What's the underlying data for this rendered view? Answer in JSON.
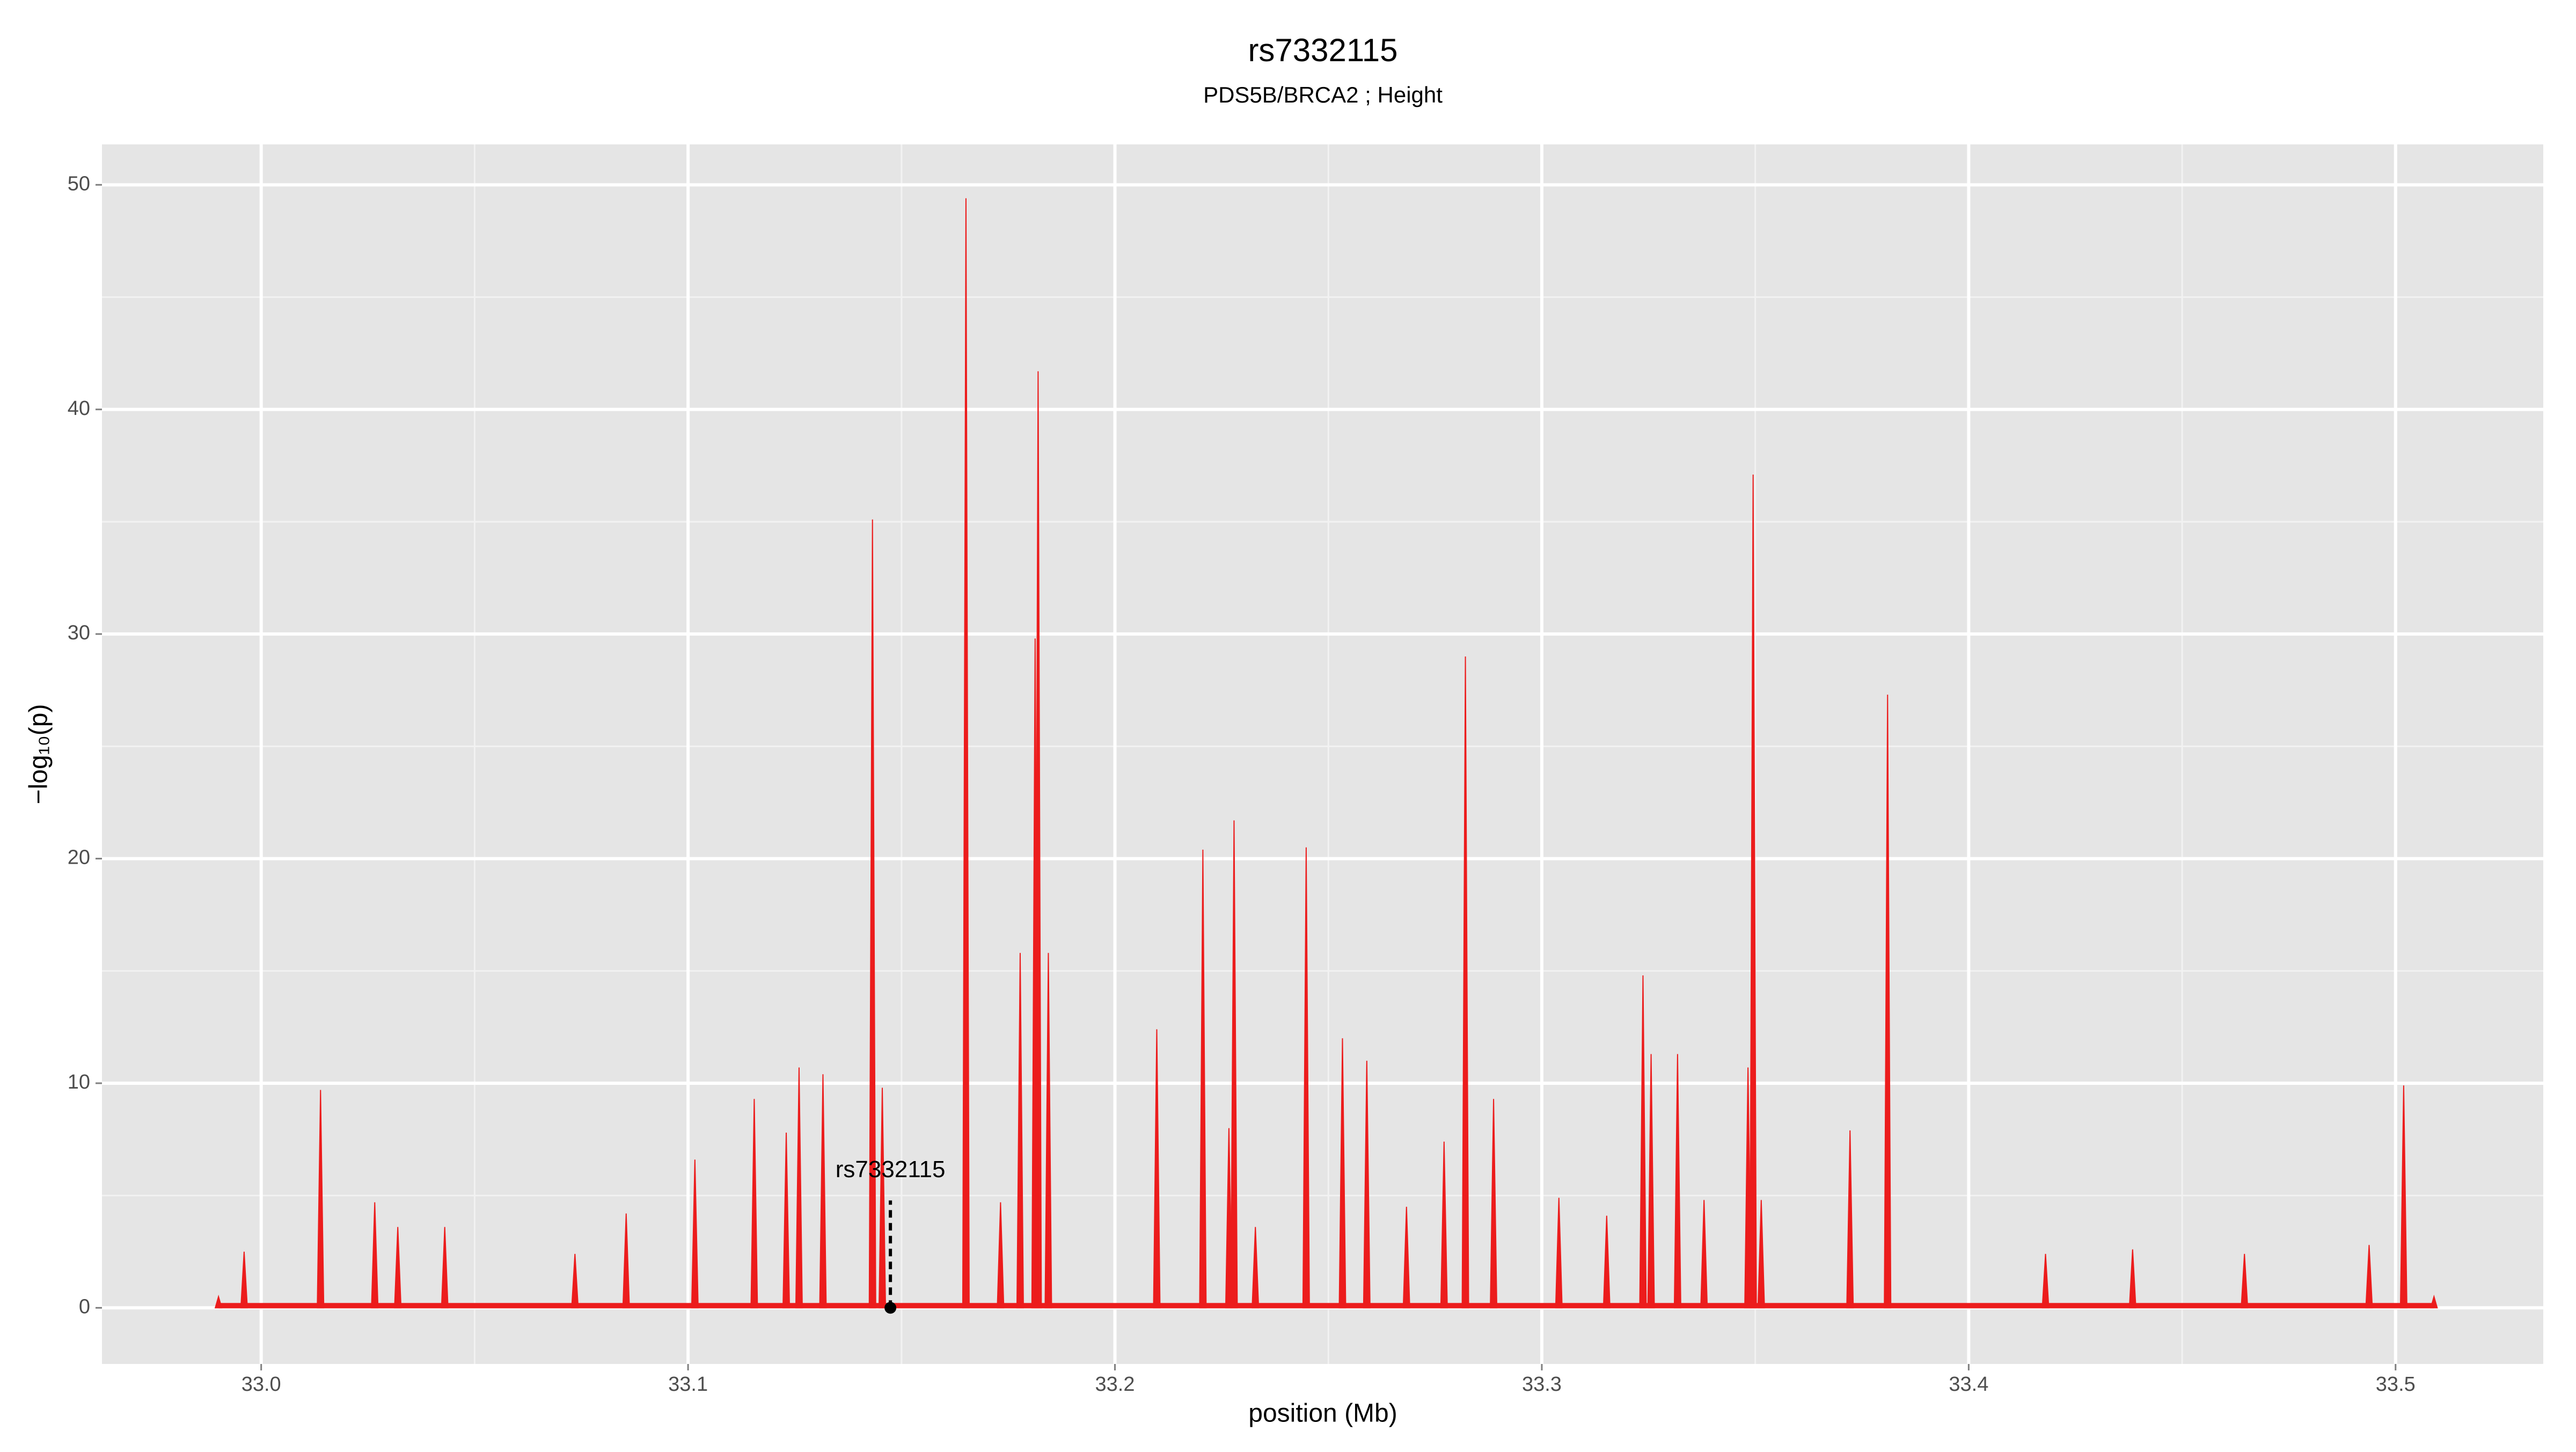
{
  "chart_data": {
    "type": "spike",
    "title": "rs7332115",
    "subtitle": "PDS5B/BRCA2 ; Height",
    "xlabel": "position (Mb)",
    "ylabel": "−log₁₀(p)",
    "color": "#ec1c1c",
    "x": [
      32.99,
      32.996,
      33.0139,
      33.0266,
      33.032,
      33.043,
      33.0735,
      33.0855,
      33.1016,
      33.1155,
      33.123,
      33.126,
      33.1316,
      33.1432,
      33.1455,
      33.1651,
      33.1732,
      33.1778,
      33.1813,
      33.182,
      33.1844,
      33.2098,
      33.2206,
      33.2267,
      33.2279,
      33.2329,
      33.2448,
      33.2533,
      33.259,
      33.2683,
      33.2771,
      33.2821,
      33.2887,
      33.304,
      33.3152,
      33.3237,
      33.3256,
      33.3318,
      33.338,
      33.3483,
      33.3495,
      33.3514,
      33.3722,
      33.381,
      33.418,
      33.4384,
      33.4646,
      33.4938,
      33.5019,
      33.509
    ],
    "values": [
      0.5,
      2.5,
      9.7,
      4.7,
      3.6,
      3.6,
      2.4,
      4.2,
      6.6,
      9.3,
      7.8,
      10.7,
      10.4,
      35.1,
      9.8,
      49.4,
      4.7,
      15.8,
      29.8,
      41.7,
      15.8,
      12.4,
      20.4,
      8,
      21.7,
      3.6,
      20.5,
      12,
      11,
      4.5,
      7.4,
      29,
      9.3,
      4.9,
      4.1,
      14.8,
      11.3,
      11.3,
      4.8,
      10.7,
      37.1,
      4.8,
      7.9,
      27.3,
      2.4,
      2.6,
      2.4,
      2.8,
      9.9,
      0.5
    ],
    "annotation": {
      "label": "rs7332115",
      "x": 33.1474,
      "y": 0
    },
    "xlim": [
      32.9627,
      33.5346
    ],
    "ylim": [
      -2.5,
      51.8
    ],
    "xticks": [
      {
        "value": 33,
        "label": "33.0"
      },
      33.1,
      33.2,
      33.3,
      33.4,
      33.5
    ],
    "yticks": [
      0,
      10,
      20,
      30,
      40,
      50
    ],
    "grid": true
  }
}
